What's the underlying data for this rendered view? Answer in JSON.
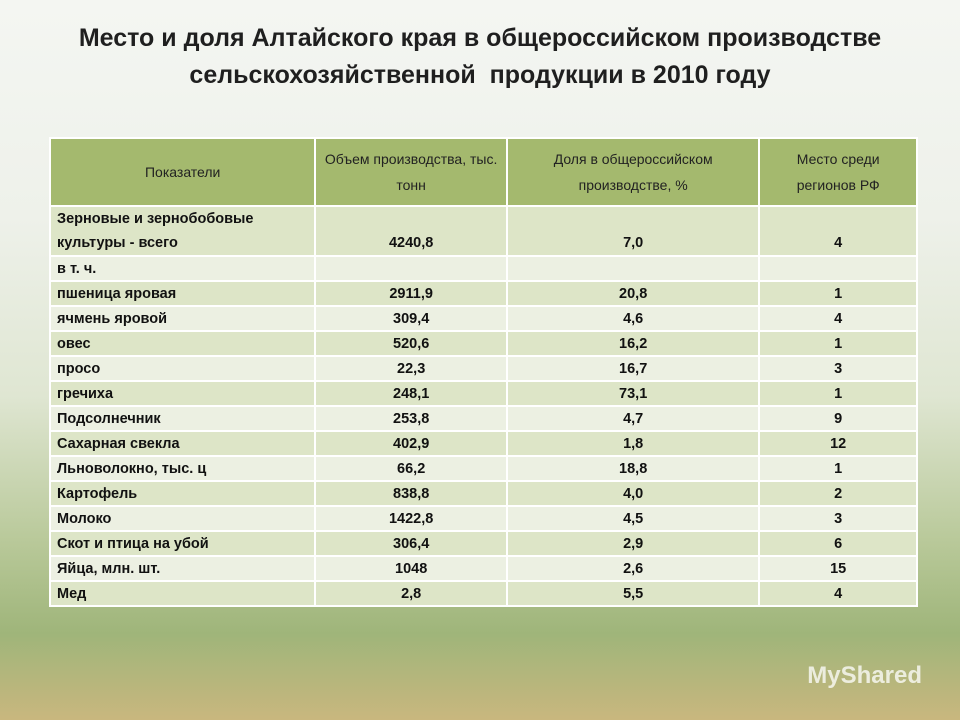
{
  "title": [
    "Место и доля Алтайского края в общероссийском производстве",
    "сельскохозяйственной  продукции в 2010 году"
  ],
  "table": {
    "header": [
      "Показатели",
      "Объем производства, тыс. тонн",
      "Доля в общероссийском производстве, %",
      "Место среди регионов РФ"
    ],
    "rows": [
      [
        "Зерновые и зернобобовые культуры - всего",
        "4240,8",
        "7,0",
        "4"
      ],
      [
        "в т. ч."
      ],
      [
        "пшеница яровая",
        "2911,9",
        "20,8",
        "1"
      ],
      [
        "ячмень яровой",
        "309,4",
        "4,6",
        "4"
      ],
      [
        "овес",
        "520,6",
        "16,2",
        "1"
      ],
      [
        "просо",
        "22,3",
        "16,7",
        "3"
      ],
      [
        "гречиха",
        "248,1",
        "73,1",
        "1"
      ],
      [
        "Подсолнечник",
        "253,8",
        "4,7",
        "9"
      ],
      [
        "Сахарная свекла",
        "402,9",
        "1,8",
        "12"
      ],
      [
        "Льноволокно, тыс. ц",
        "66,2",
        "18,8",
        "1"
      ],
      [
        "Картофель",
        "838,8",
        "4,0",
        "2"
      ],
      [
        "Молоко",
        "1422,8",
        "4,5",
        "3"
      ],
      [
        "Скот и птица на убой",
        "306,4",
        "2,9",
        "6"
      ],
      [
        "Яйца, млн. шт.",
        "1048",
        "2,6",
        "15"
      ],
      [
        "Мед",
        "2,8",
        "5,5",
        "4"
      ]
    ]
  },
  "watermark": "MyShared"
}
